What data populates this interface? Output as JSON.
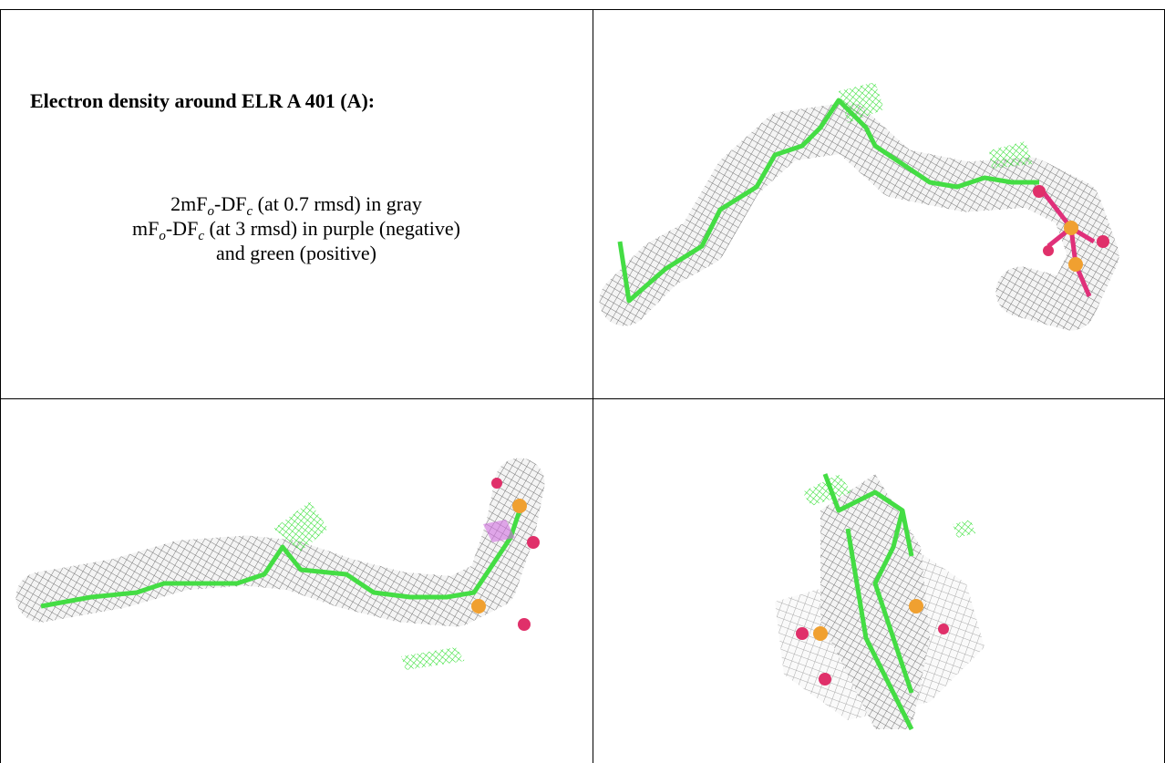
{
  "header": {
    "title": "Electron density around ELR A 401 (A):"
  },
  "legend": {
    "lines": [
      {
        "parts": [
          "2mF",
          "o",
          "-DF",
          "c",
          " (at 0.7 rmsd) in gray"
        ]
      },
      {
        "parts": [
          "mF",
          "o",
          "-DF",
          "c",
          " (at 3 rmsd) in purple (negative)"
        ]
      },
      {
        "parts": [
          "and green (positive)"
        ]
      }
    ]
  }
}
